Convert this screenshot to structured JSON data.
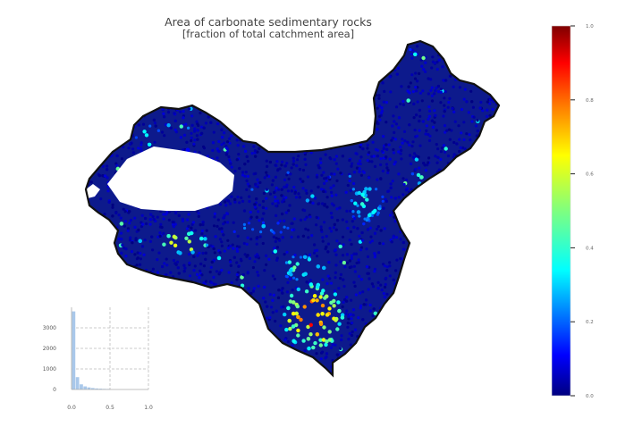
{
  "title": "Area of carbonate sedimentary rocks",
  "subtitle": "[fraction of total catchment area]",
  "colorbar": {
    "colormap": "jet",
    "ticks": [
      "0.0",
      "0.2",
      "0.4",
      "0.6",
      "0.8",
      "1.0"
    ],
    "colors": [
      "#00007f",
      "#0000ff",
      "#007fff",
      "#00ffff",
      "#7fff7f",
      "#ffff00",
      "#ff7f00",
      "#ff0000",
      "#7f0000"
    ]
  },
  "chart_data": [
    {
      "type": "map",
      "description_of_data": "point samples over catchments, colored by fraction of carbonate sedimentary rocks",
      "value_range": [
        0,
        1
      ],
      "hotspots": [
        "southwest (high values ~0.8-1.0)",
        "western plateau (values ~0.8)"
      ]
    },
    {
      "type": "bar",
      "xlim": [
        0,
        1
      ],
      "ylim": [
        0,
        4000
      ],
      "xticks": [
        "0.0",
        "0.5",
        "1.0"
      ],
      "yticks": [
        "0",
        "1000",
        "2000",
        "3000"
      ],
      "x": [
        0.03,
        0.08,
        0.13,
        0.18,
        0.23,
        0.28,
        0.33,
        0.38,
        0.43,
        0.48
      ],
      "values": [
        3800,
        600,
        250,
        150,
        100,
        70,
        50,
        40,
        30,
        25
      ],
      "bar_color": "#a9c8ea"
    }
  ]
}
